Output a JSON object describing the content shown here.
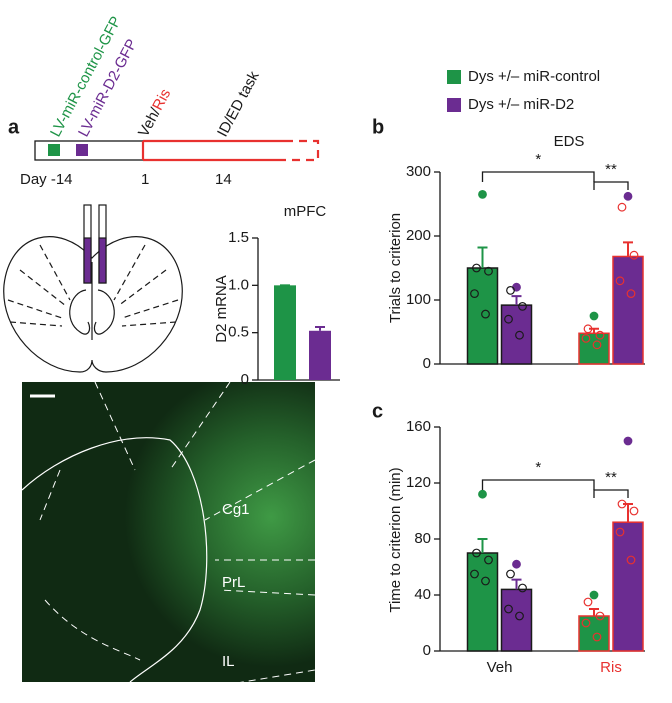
{
  "panel_labels": [
    "a",
    "b",
    "c"
  ],
  "timeline": {
    "vectors": [
      {
        "label": "LV-miR-control-GFP",
        "color": "#1e9447"
      },
      {
        "label": "LV-miR-D2-GFP",
        "color": "#6b2c91"
      }
    ],
    "treatment": "Veh/",
    "treatment_highlight": "Ris",
    "highlight_color": "#e8312f",
    "task": "ID/ED task",
    "days": [
      "Day -14",
      "1",
      "14"
    ]
  },
  "micrograph": {
    "regions": [
      "Cg1",
      "PrL",
      "IL"
    ]
  },
  "chart_data": [
    {
      "type": "bar",
      "title": "mPFC",
      "ylabel": "D2 mRNA",
      "values": [
        1.0,
        0.52
      ],
      "errors": [
        0,
        0.04
      ],
      "colors": [
        "#1e9447",
        "#6b2c91"
      ],
      "ylim": [
        0,
        1.5
      ],
      "yticks": [
        0,
        0.5,
        {
          "value": 1.0,
          "label": "1.0"
        },
        1.5
      ]
    },
    {
      "type": "grouped_bar",
      "title": "EDS",
      "ylabel": "Trials to criterion",
      "categories": [
        "Veh",
        "Ris"
      ],
      "category_colors": [
        "#1a1a1a",
        "#e8312f"
      ],
      "series": [
        {
          "name": "Dys +/– miR-control",
          "color": "#1e9447",
          "values": [
            150,
            48
          ],
          "errors": [
            32,
            7
          ],
          "points": [
            [
              265,
              150,
              145,
              110,
              78
            ],
            [
              75,
              55,
              45,
              40,
              30
            ]
          ]
        },
        {
          "name": "Dys +/– miR-D2",
          "color": "#6b2c91",
          "values": [
            92,
            168
          ],
          "errors": [
            14,
            22
          ],
          "points": [
            [
              120,
              115,
              90,
              70,
              45
            ],
            [
              262,
              245,
              170,
              130,
              110
            ]
          ]
        }
      ],
      "annotations": [
        "*",
        "**"
      ],
      "ylim": [
        0,
        300
      ],
      "yticks": [
        0,
        100,
        200,
        300
      ]
    },
    {
      "type": "grouped_bar",
      "ylabel": "Time to criterion (min)",
      "categories": [
        "Veh",
        "Ris"
      ],
      "category_colors": [
        "#1a1a1a",
        "#e8312f"
      ],
      "series": [
        {
          "color": "#1e9447",
          "values": [
            70,
            25
          ],
          "errors": [
            10,
            5
          ],
          "points": [
            [
              112,
              70,
              65,
              55,
              50
            ],
            [
              40,
              35,
              25,
              20,
              10
            ]
          ]
        },
        {
          "color": "#6b2c91",
          "values": [
            44,
            92
          ],
          "errors": [
            7,
            13
          ],
          "points": [
            [
              62,
              55,
              45,
              30,
              25
            ],
            [
              150,
              105,
              100,
              85,
              65
            ]
          ]
        }
      ],
      "annotations": [
        "*",
        "**"
      ],
      "ylim": [
        0,
        160
      ],
      "yticks": [
        0,
        40,
        80,
        120,
        160
      ]
    }
  ]
}
